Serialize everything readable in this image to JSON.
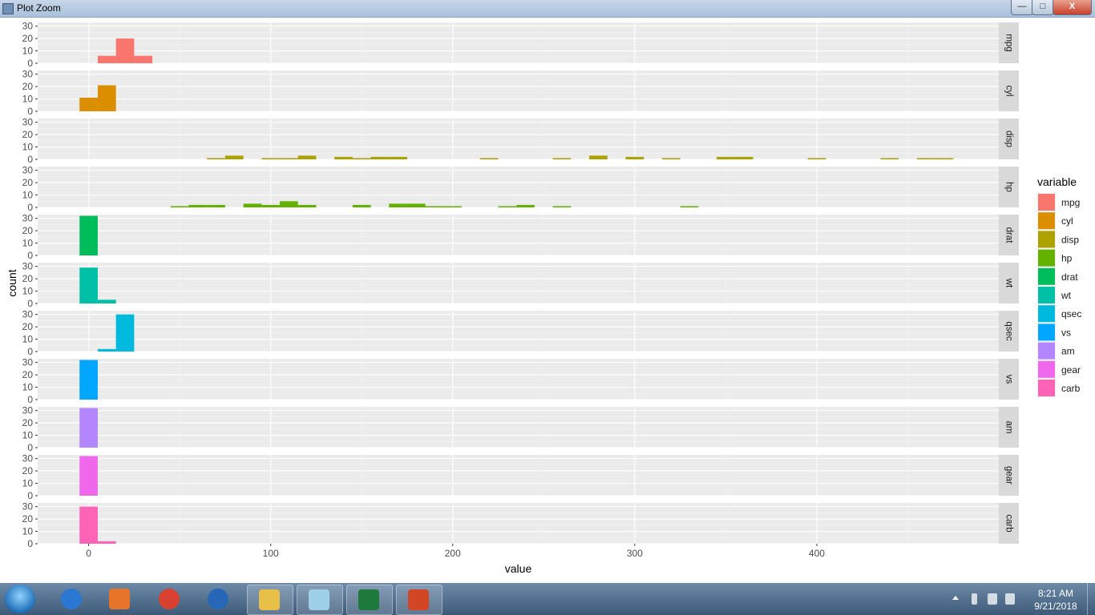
{
  "window": {
    "title": "Plot Zoom",
    "minimize_glyph": "—",
    "maximize_glyph": "□",
    "close_glyph": "X"
  },
  "chart_data": {
    "type": "bar",
    "xlabel": "value",
    "ylabel": "count",
    "xlim": [
      -28,
      500
    ],
    "ylim": [
      0,
      33
    ],
    "x_ticks": [
      0,
      100,
      200,
      300,
      400
    ],
    "y_ticks": [
      0,
      10,
      20,
      30
    ],
    "binwidth": 10,
    "legend": {
      "title": "variable",
      "position": "right"
    },
    "facets": [
      {
        "name": "mpg",
        "color": "#F8766D",
        "bins": [
          [
            10,
            6
          ],
          [
            20,
            20
          ],
          [
            30,
            6
          ]
        ]
      },
      {
        "name": "cyl",
        "color": "#DB8E00",
        "bins": [
          [
            0,
            11
          ],
          [
            10,
            21
          ]
        ]
      },
      {
        "name": "disp",
        "color": "#AEA200",
        "bins": [
          [
            70,
            1
          ],
          [
            80,
            3
          ],
          [
            100,
            1
          ],
          [
            110,
            1
          ],
          [
            120,
            3
          ],
          [
            140,
            2
          ],
          [
            150,
            1
          ],
          [
            160,
            2
          ],
          [
            170,
            2
          ],
          [
            220,
            1
          ],
          [
            260,
            1
          ],
          [
            280,
            3
          ],
          [
            300,
            2
          ],
          [
            320,
            1
          ],
          [
            350,
            2
          ],
          [
            360,
            2
          ],
          [
            400,
            1
          ],
          [
            440,
            1
          ],
          [
            460,
            1
          ],
          [
            470,
            1
          ]
        ]
      },
      {
        "name": "hp",
        "color": "#64B200",
        "bins": [
          [
            50,
            1
          ],
          [
            60,
            2
          ],
          [
            70,
            2
          ],
          [
            90,
            3
          ],
          [
            100,
            2
          ],
          [
            110,
            5
          ],
          [
            120,
            2
          ],
          [
            150,
            2
          ],
          [
            170,
            3
          ],
          [
            180,
            3
          ],
          [
            190,
            1
          ],
          [
            200,
            1
          ],
          [
            230,
            1
          ],
          [
            240,
            2
          ],
          [
            260,
            1
          ],
          [
            330,
            1
          ]
        ]
      },
      {
        "name": "drat",
        "color": "#00BD5C",
        "bins": [
          [
            0,
            32
          ]
        ]
      },
      {
        "name": "wt",
        "color": "#00C1A7",
        "bins": [
          [
            0,
            29
          ],
          [
            10,
            3
          ]
        ]
      },
      {
        "name": "qsec",
        "color": "#00BADE",
        "bins": [
          [
            10,
            2
          ],
          [
            20,
            30
          ]
        ]
      },
      {
        "name": "vs",
        "color": "#00A6FF",
        "bins": [
          [
            0,
            32
          ]
        ]
      },
      {
        "name": "am",
        "color": "#B385FF",
        "bins": [
          [
            0,
            32
          ]
        ]
      },
      {
        "name": "gear",
        "color": "#EF67EB",
        "bins": [
          [
            0,
            32
          ]
        ]
      },
      {
        "name": "carb",
        "color": "#FF63B6",
        "bins": [
          [
            0,
            30
          ],
          [
            10,
            2
          ]
        ]
      }
    ]
  },
  "taskbar": {
    "time": "8:21 AM",
    "date": "9/21/2018",
    "apps": [
      {
        "name": "internet-explorer",
        "color": "#2b78d4"
      },
      {
        "name": "media-player",
        "color": "#e8742a"
      },
      {
        "name": "chrome",
        "color": "#d8412f"
      },
      {
        "name": "r-gui",
        "color": "#2767b8"
      },
      {
        "name": "file-explorer",
        "color": "#e8c048"
      },
      {
        "name": "notepad",
        "color": "#9fd0ea"
      },
      {
        "name": "excel",
        "color": "#1e7a3c"
      },
      {
        "name": "powerpoint",
        "color": "#d24625"
      }
    ]
  }
}
